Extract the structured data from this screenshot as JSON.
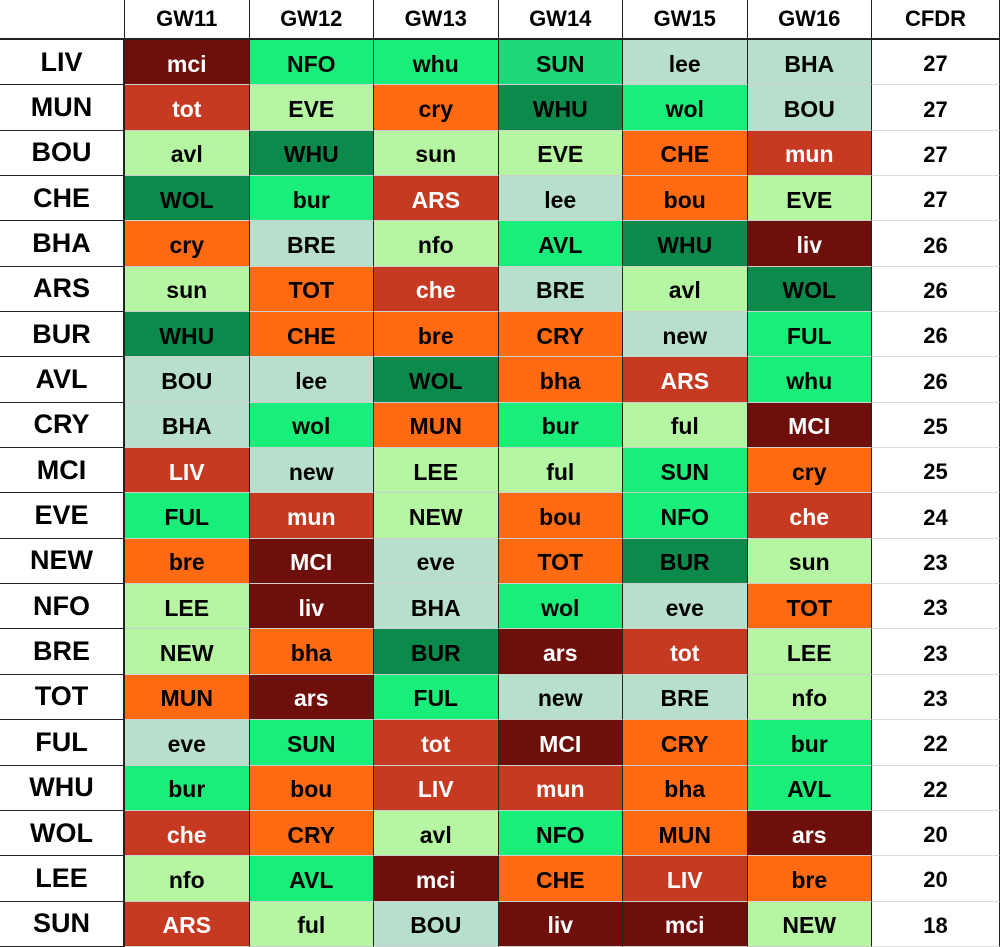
{
  "table": {
    "header": [
      "GW11",
      "GW12",
      "GW13",
      "GW14",
      "GW15",
      "GW16",
      "CFDR"
    ],
    "rows": [
      {
        "team": "LIV",
        "cfdr": 27,
        "cells": [
          {
            "text": "mci",
            "color": "#6e0f0b"
          },
          {
            "text": "NFO",
            "color": "#1aee7a"
          },
          {
            "text": "whu",
            "color": "#1aee7a"
          },
          {
            "text": "SUN",
            "color": "#1dd97a"
          },
          {
            "text": "lee",
            "color": "#b7dfcc"
          },
          {
            "text": "BHA",
            "color": "#b7dfcc"
          }
        ]
      },
      {
        "team": "MUN",
        "cfdr": 27,
        "cells": [
          {
            "text": "tot",
            "color": "#c63a22"
          },
          {
            "text": "EVE",
            "color": "#b6f5a2"
          },
          {
            "text": "cry",
            "color": "#ff6a13"
          },
          {
            "text": "WHU",
            "color": "#0c8a4c"
          },
          {
            "text": "wol",
            "color": "#1aee7a"
          },
          {
            "text": "BOU",
            "color": "#b7dfcc"
          }
        ]
      },
      {
        "team": "BOU",
        "cfdr": 27,
        "cells": [
          {
            "text": "avl",
            "color": "#b6f5a2"
          },
          {
            "text": "WHU",
            "color": "#0c8a4c"
          },
          {
            "text": "sun",
            "color": "#b6f5a2"
          },
          {
            "text": "EVE",
            "color": "#b6f5a2"
          },
          {
            "text": "CHE",
            "color": "#ff6a13"
          },
          {
            "text": "mun",
            "color": "#c63a22"
          }
        ]
      },
      {
        "team": "CHE",
        "cfdr": 27,
        "cells": [
          {
            "text": "WOL",
            "color": "#0c8a4c"
          },
          {
            "text": "bur",
            "color": "#1aee7a"
          },
          {
            "text": "ARS",
            "color": "#c63a22"
          },
          {
            "text": "lee",
            "color": "#b7dfcc"
          },
          {
            "text": "bou",
            "color": "#ff6a13"
          },
          {
            "text": "EVE",
            "color": "#b6f5a2"
          }
        ]
      },
      {
        "team": "BHA",
        "cfdr": 26,
        "cells": [
          {
            "text": "cry",
            "color": "#ff6a13"
          },
          {
            "text": "BRE",
            "color": "#b7dfcc"
          },
          {
            "text": "nfo",
            "color": "#b6f5a2"
          },
          {
            "text": "AVL",
            "color": "#1aee7a"
          },
          {
            "text": "WHU",
            "color": "#0c8a4c"
          },
          {
            "text": "liv",
            "color": "#6e0f0b"
          }
        ]
      },
      {
        "team": "ARS",
        "cfdr": 26,
        "cells": [
          {
            "text": "sun",
            "color": "#b6f5a2"
          },
          {
            "text": "TOT",
            "color": "#ff6a13"
          },
          {
            "text": "che",
            "color": "#c63a22"
          },
          {
            "text": "BRE",
            "color": "#b7dfcc"
          },
          {
            "text": "avl",
            "color": "#b6f5a2"
          },
          {
            "text": "WOL",
            "color": "#0c8a4c"
          }
        ]
      },
      {
        "team": "BUR",
        "cfdr": 26,
        "cells": [
          {
            "text": "WHU",
            "color": "#0c8a4c"
          },
          {
            "text": "CHE",
            "color": "#ff6a13"
          },
          {
            "text": "bre",
            "color": "#ff6a13"
          },
          {
            "text": "CRY",
            "color": "#ff6a13"
          },
          {
            "text": "new",
            "color": "#b7dfcc"
          },
          {
            "text": "FUL",
            "color": "#1aee7a"
          }
        ]
      },
      {
        "team": "AVL",
        "cfdr": 26,
        "cells": [
          {
            "text": "BOU",
            "color": "#b7dfcc"
          },
          {
            "text": "lee",
            "color": "#b7dfcc"
          },
          {
            "text": "WOL",
            "color": "#0c8a4c"
          },
          {
            "text": "bha",
            "color": "#ff6a13"
          },
          {
            "text": "ARS",
            "color": "#c63a22"
          },
          {
            "text": "whu",
            "color": "#1aee7a"
          }
        ]
      },
      {
        "team": "CRY",
        "cfdr": 25,
        "cells": [
          {
            "text": "BHA",
            "color": "#b7dfcc"
          },
          {
            "text": "wol",
            "color": "#1aee7a"
          },
          {
            "text": "MUN",
            "color": "#ff6a13"
          },
          {
            "text": "bur",
            "color": "#1aee7a"
          },
          {
            "text": "ful",
            "color": "#b6f5a2"
          },
          {
            "text": "MCI",
            "color": "#6e0f0b"
          }
        ]
      },
      {
        "team": "MCI",
        "cfdr": 25,
        "cells": [
          {
            "text": "LIV",
            "color": "#c63a22"
          },
          {
            "text": "new",
            "color": "#b7dfcc"
          },
          {
            "text": "LEE",
            "color": "#b6f5a2"
          },
          {
            "text": "ful",
            "color": "#b6f5a2"
          },
          {
            "text": "SUN",
            "color": "#1aee7a"
          },
          {
            "text": "cry",
            "color": "#ff6a13"
          }
        ]
      },
      {
        "team": "EVE",
        "cfdr": 24,
        "cells": [
          {
            "text": "FUL",
            "color": "#1aee7a"
          },
          {
            "text": "mun",
            "color": "#c63a22"
          },
          {
            "text": "NEW",
            "color": "#b6f5a2"
          },
          {
            "text": "bou",
            "color": "#ff6a13"
          },
          {
            "text": "NFO",
            "color": "#1aee7a"
          },
          {
            "text": "che",
            "color": "#c63a22"
          }
        ]
      },
      {
        "team": "NEW",
        "cfdr": 23,
        "cells": [
          {
            "text": "bre",
            "color": "#ff6a13"
          },
          {
            "text": "MCI",
            "color": "#6e0f0b"
          },
          {
            "text": "eve",
            "color": "#b7dfcc"
          },
          {
            "text": "TOT",
            "color": "#ff6a13"
          },
          {
            "text": "BUR",
            "color": "#0c8a4c"
          },
          {
            "text": "sun",
            "color": "#b6f5a2"
          }
        ]
      },
      {
        "team": "NFO",
        "cfdr": 23,
        "cells": [
          {
            "text": "LEE",
            "color": "#b6f5a2"
          },
          {
            "text": "liv",
            "color": "#6e0f0b"
          },
          {
            "text": "BHA",
            "color": "#b7dfcc"
          },
          {
            "text": "wol",
            "color": "#1aee7a"
          },
          {
            "text": "eve",
            "color": "#b7dfcc"
          },
          {
            "text": "TOT",
            "color": "#ff6a13"
          }
        ]
      },
      {
        "team": "BRE",
        "cfdr": 23,
        "cells": [
          {
            "text": "NEW",
            "color": "#b6f5a2"
          },
          {
            "text": "bha",
            "color": "#ff6a13"
          },
          {
            "text": "BUR",
            "color": "#0c8a4c"
          },
          {
            "text": "ars",
            "color": "#6e0f0b"
          },
          {
            "text": "tot",
            "color": "#c63a22"
          },
          {
            "text": "LEE",
            "color": "#b6f5a2"
          }
        ]
      },
      {
        "team": "TOT",
        "cfdr": 23,
        "cells": [
          {
            "text": "MUN",
            "color": "#ff6a13"
          },
          {
            "text": "ars",
            "color": "#6e0f0b"
          },
          {
            "text": "FUL",
            "color": "#1aee7a"
          },
          {
            "text": "new",
            "color": "#b7dfcc"
          },
          {
            "text": "BRE",
            "color": "#b7dfcc"
          },
          {
            "text": "nfo",
            "color": "#b6f5a2"
          }
        ]
      },
      {
        "team": "FUL",
        "cfdr": 22,
        "cells": [
          {
            "text": "eve",
            "color": "#b7dfcc"
          },
          {
            "text": "SUN",
            "color": "#1aee7a"
          },
          {
            "text": "tot",
            "color": "#c63a22"
          },
          {
            "text": "MCI",
            "color": "#6e0f0b"
          },
          {
            "text": "CRY",
            "color": "#ff6a13"
          },
          {
            "text": "bur",
            "color": "#1aee7a"
          }
        ]
      },
      {
        "team": "WHU",
        "cfdr": 22,
        "cells": [
          {
            "text": "bur",
            "color": "#1aee7a"
          },
          {
            "text": "bou",
            "color": "#ff6a13"
          },
          {
            "text": "LIV",
            "color": "#c63a22"
          },
          {
            "text": "mun",
            "color": "#c63a22"
          },
          {
            "text": "bha",
            "color": "#ff6a13"
          },
          {
            "text": "AVL",
            "color": "#1aee7a"
          }
        ]
      },
      {
        "team": "WOL",
        "cfdr": 20,
        "cells": [
          {
            "text": "che",
            "color": "#c63a22"
          },
          {
            "text": "CRY",
            "color": "#ff6a13"
          },
          {
            "text": "avl",
            "color": "#b6f5a2"
          },
          {
            "text": "NFO",
            "color": "#1aee7a"
          },
          {
            "text": "MUN",
            "color": "#ff6a13"
          },
          {
            "text": "ars",
            "color": "#6e0f0b"
          }
        ]
      },
      {
        "team": "LEE",
        "cfdr": 20,
        "cells": [
          {
            "text": "nfo",
            "color": "#b6f5a2"
          },
          {
            "text": "AVL",
            "color": "#1aee7a"
          },
          {
            "text": "mci",
            "color": "#6e0f0b"
          },
          {
            "text": "CHE",
            "color": "#ff6a13"
          },
          {
            "text": "LIV",
            "color": "#c63a22"
          },
          {
            "text": "bre",
            "color": "#ff6a13"
          }
        ]
      },
      {
        "team": "SUN",
        "cfdr": 18,
        "cells": [
          {
            "text": "ARS",
            "color": "#c63a22"
          },
          {
            "text": "ful",
            "color": "#b6f5a2"
          },
          {
            "text": "BOU",
            "color": "#b7dfcc"
          },
          {
            "text": "liv",
            "color": "#6e0f0b"
          },
          {
            "text": "mci",
            "color": "#6e0f0b"
          },
          {
            "text": "NEW",
            "color": "#b6f5a2"
          }
        ]
      }
    ]
  }
}
